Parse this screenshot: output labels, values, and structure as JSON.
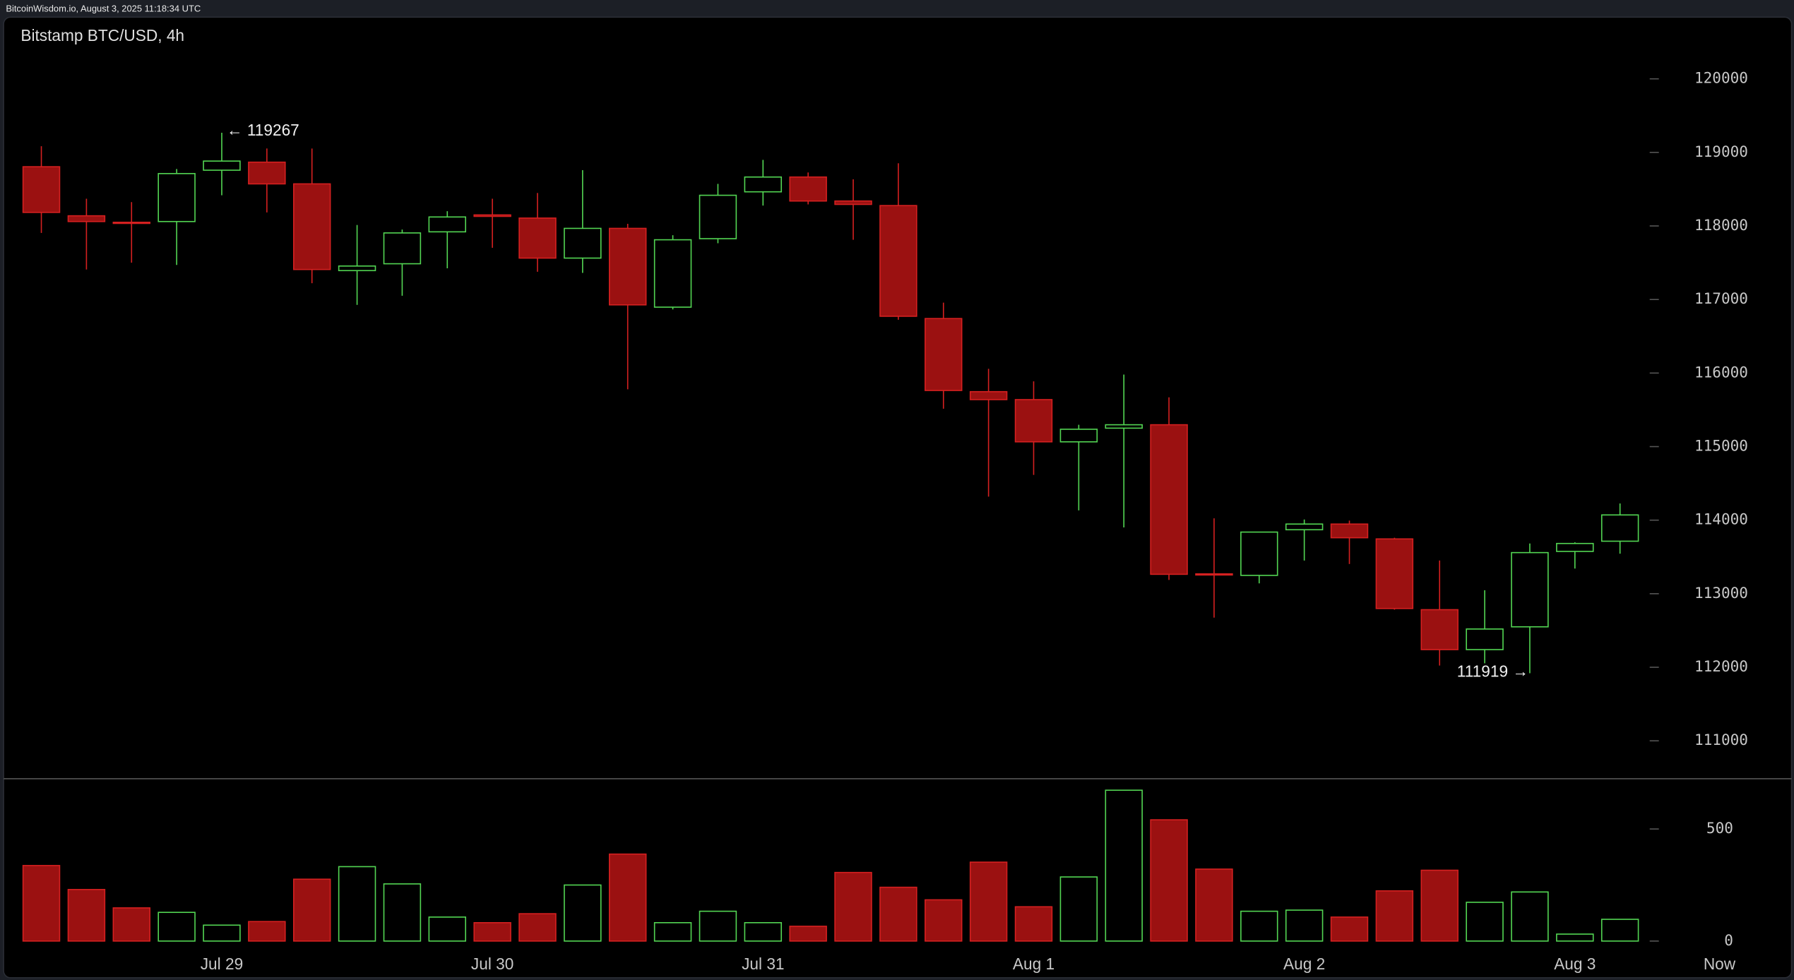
{
  "header": "BitcoinWisdom.io, August 3, 2025 11:18:34 UTC",
  "chart_data": {
    "type": "candlestick",
    "title": "Bitstamp BTC/USD, 4h",
    "categories": [
      null,
      null,
      null,
      null,
      "Jul 29",
      null,
      null,
      null,
      null,
      null,
      "Jul 30",
      null,
      null,
      null,
      null,
      null,
      "Jul 31",
      null,
      null,
      null,
      null,
      null,
      "Aug 1",
      null,
      null,
      null,
      null,
      null,
      "Aug 2",
      null,
      null,
      null,
      null,
      null,
      "Aug 3",
      null
    ],
    "now_label": "Now",
    "open": [
      118805,
      118138,
      118050,
      118060,
      118758,
      118867,
      118572,
      117393,
      117486,
      117920,
      118150,
      118107,
      117563,
      117967,
      116896,
      117827,
      118464,
      118665,
      118339,
      118277,
      116741,
      115747,
      115639,
      115065,
      115251,
      115297,
      113270,
      113249,
      113870,
      113947,
      113745,
      112783,
      112240,
      112550,
      113575,
      113714
    ],
    "high": [
      119084,
      118370,
      118324,
      118774,
      119267,
      119053,
      119053,
      118013,
      117951,
      118200,
      118370,
      118448,
      118758,
      118029,
      117874,
      118572,
      118898,
      118727,
      118634,
      118852,
      116958,
      116058,
      115887,
      115297,
      115980,
      115670,
      114025,
      113838,
      114009,
      113994,
      113761,
      113451,
      113047,
      113683,
      113699,
      114227
    ],
    "low": [
      117905,
      117408,
      117501,
      117470,
      118417,
      118184,
      117222,
      116927,
      117051,
      117424,
      117703,
      117377,
      117362,
      115779,
      116865,
      117765,
      118277,
      118293,
      117812,
      116725,
      115515,
      114320,
      114615,
      114133,
      113901,
      113187,
      112675,
      113140,
      113451,
      113404,
      112783,
      112023,
      112054,
      111919,
      113342,
      113544
    ],
    "close": [
      118184,
      118060,
      118040,
      118712,
      118882,
      118572,
      117408,
      117455,
      117905,
      118122,
      118130,
      117563,
      117967,
      116927,
      117812,
      118417,
      118665,
      118339,
      118293,
      116772,
      115763,
      115639,
      115065,
      115236,
      115297,
      113264,
      113260,
      113838,
      113947,
      113761,
      112799,
      112240,
      112520,
      113559,
      113683,
      114071
    ],
    "volume": [
      337,
      230,
      148,
      128,
      71,
      87,
      276,
      332,
      255,
      107,
      82,
      122,
      250,
      388,
      82,
      133,
      82,
      66,
      306,
      240,
      184,
      352,
      153,
      286,
      673,
      541,
      321,
      133,
      138,
      107,
      224,
      316,
      173,
      219,
      31,
      97
    ],
    "ylim": [
      110500,
      120450
    ],
    "yticks": [
      111000,
      112000,
      113000,
      114000,
      115000,
      116000,
      117000,
      118000,
      119000,
      120000
    ],
    "vlim": [
      -36,
      714
    ],
    "vticks": [
      0,
      500
    ],
    "up_color": "#52d452",
    "down_color": "#9b1111",
    "down_edge": "#d42020",
    "annotations": [
      {
        "text": "← 119267"
      },
      {
        "text": "111919 →"
      }
    ]
  }
}
